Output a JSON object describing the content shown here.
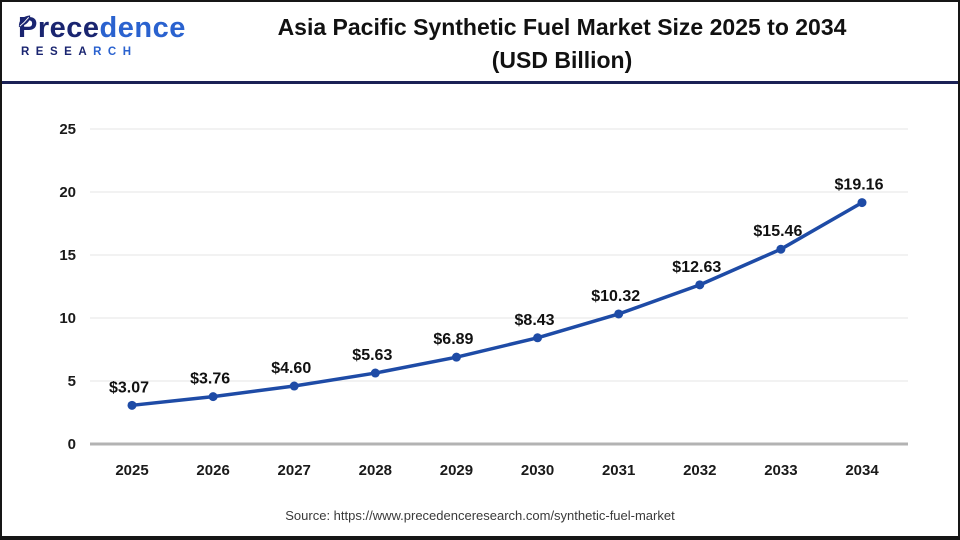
{
  "header": {
    "logo": {
      "part1": "Prece",
      "part2": "dence",
      "sub1": "RESEA",
      "sub2": "RCH"
    },
    "title_line1": "Asia Pacific Synthetic Fuel Market Size 2025 to 2034",
    "title_line2": "(USD Billion)"
  },
  "chart_data": {
    "type": "line",
    "title": "Asia Pacific Synthetic Fuel Market Size 2025 to 2034 (USD Billion)",
    "categories": [
      "2025",
      "2026",
      "2027",
      "2028",
      "2029",
      "2030",
      "2031",
      "2032",
      "2033",
      "2034"
    ],
    "values": [
      3.07,
      3.76,
      4.6,
      5.63,
      6.89,
      8.43,
      10.32,
      12.63,
      15.46,
      19.16
    ],
    "point_labels": [
      "$3.07",
      "$3.76",
      "$4.60",
      "$5.63",
      "$6.89",
      "$8.43",
      "$10.32",
      "$12.63",
      "$15.46",
      "$19.16"
    ],
    "xlabel": "",
    "ylabel": "",
    "ylim": [
      0,
      25
    ],
    "yticks": [
      0,
      5,
      10,
      15,
      20,
      25
    ],
    "grid": true,
    "legend": "none",
    "line_color": "#1e4ba6"
  },
  "footer": {
    "source": "Source: https://www.precedenceresearch.com/synthetic-fuel-market"
  }
}
